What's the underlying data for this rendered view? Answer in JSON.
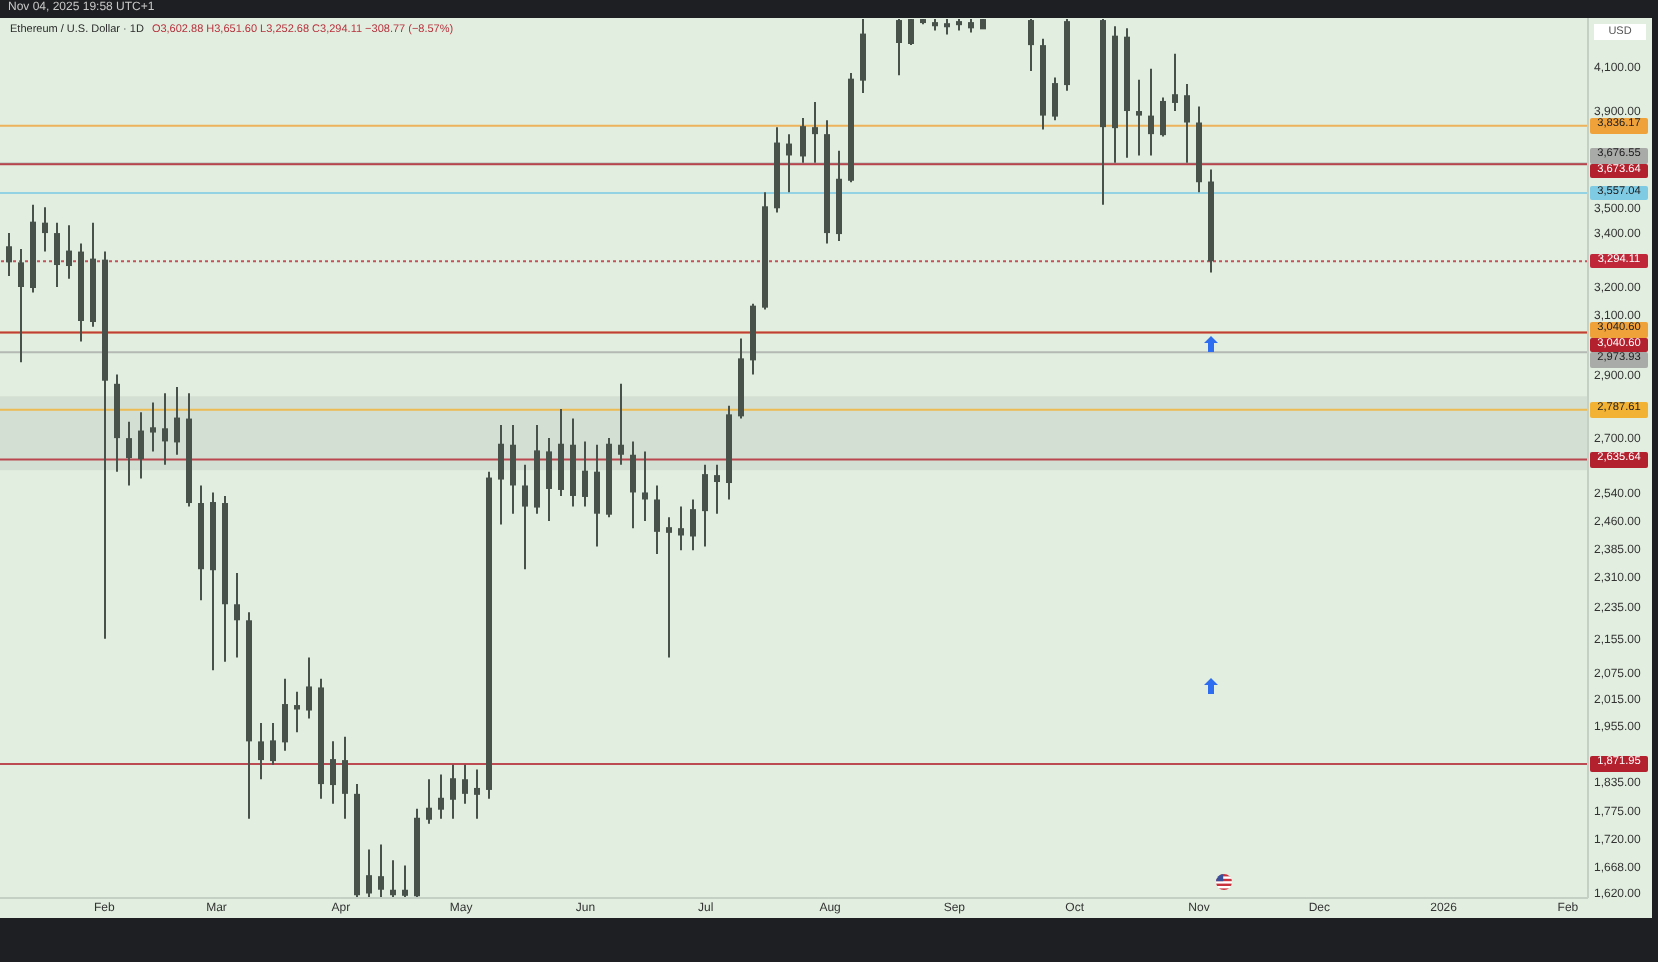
{
  "chart_data": {
    "type": "candlestick",
    "title": "Ethereum / U.S. Dollar · 1D",
    "subtitle": "O3,602.88 H3,651.60 L3,252.68 C3,294.11 −308.77 (−8.57%)",
    "ylabel": "USD",
    "annotations": [
      "Nov 04, 2025 19:58 UTC+1"
    ],
    "color": "#48524b",
    "log": true,
    "x": [
      "2025-01-08",
      "2025-01-11",
      "2025-01-14",
      "2025-01-17",
      "2025-01-20",
      "2025-01-23",
      "2025-01-26",
      "2025-01-29",
      "2025-02-01",
      "2025-02-04",
      "2025-02-07",
      "2025-02-10",
      "2025-02-13",
      "2025-02-16",
      "2025-02-19",
      "2025-02-22",
      "2025-02-25",
      "2025-02-28",
      "2025-03-03",
      "2025-03-06",
      "2025-03-09",
      "2025-03-12",
      "2025-03-15",
      "2025-03-18",
      "2025-03-21",
      "2025-03-24",
      "2025-03-27",
      "2025-03-30",
      "2025-04-02",
      "2025-04-05",
      "2025-04-08",
      "2025-04-11",
      "2025-04-14",
      "2025-04-17",
      "2025-04-20",
      "2025-04-23",
      "2025-04-26",
      "2025-04-29",
      "2025-05-02",
      "2025-05-05",
      "2025-05-08",
      "2025-05-11",
      "2025-05-14",
      "2025-05-17",
      "2025-05-20",
      "2025-05-23",
      "2025-05-26",
      "2025-05-29",
      "2025-06-01",
      "2025-06-04",
      "2025-06-07",
      "2025-06-10",
      "2025-06-13",
      "2025-06-16",
      "2025-06-19",
      "2025-06-22",
      "2025-06-25",
      "2025-06-28",
      "2025-07-01",
      "2025-07-04",
      "2025-07-07",
      "2025-07-10",
      "2025-07-13",
      "2025-07-16",
      "2025-07-19",
      "2025-07-22",
      "2025-07-25",
      "2025-07-28",
      "2025-07-31",
      "2025-08-03",
      "2025-08-06",
      "2025-08-09",
      "2025-08-18",
      "2025-08-21",
      "2025-08-24",
      "2025-08-27",
      "2025-08-30",
      "2025-09-02",
      "2025-09-05",
      "2025-09-08",
      "2025-09-20",
      "2025-09-23",
      "2025-09-26",
      "2025-09-29",
      "2025-10-08",
      "2025-10-11",
      "2025-10-14",
      "2025-10-17",
      "2025-10-20",
      "2025-10-23",
      "2025-10-26",
      "2025-10-29",
      "2025-11-01",
      "2025-11-04"
    ],
    "ohlc": [
      [
        3350,
        3400,
        3240,
        3290
      ],
      [
        3290,
        3340,
        2940,
        3200
      ],
      [
        3200,
        3510,
        3180,
        3440
      ],
      [
        3440,
        3500,
        3330,
        3400
      ],
      [
        3400,
        3440,
        3200,
        3280
      ],
      [
        3280,
        3430,
        3230,
        3330
      ],
      [
        3330,
        3360,
        3010,
        3080
      ],
      [
        3080,
        3440,
        3060,
        3300
      ],
      [
        3300,
        3330,
        2155,
        2880
      ],
      [
        2870,
        2900,
        2600,
        2700
      ],
      [
        2700,
        2750,
        2560,
        2640
      ],
      [
        2640,
        2780,
        2580,
        2720
      ],
      [
        2720,
        2810,
        2660,
        2730
      ],
      [
        2730,
        2840,
        2620,
        2690
      ],
      [
        2690,
        2860,
        2650,
        2760
      ],
      [
        2760,
        2840,
        2500,
        2510
      ],
      [
        2510,
        2560,
        2250,
        2330
      ],
      [
        2330,
        2540,
        2080,
        2510
      ],
      [
        2510,
        2530,
        2100,
        2240
      ],
      [
        2240,
        2320,
        2110,
        2200
      ],
      [
        2200,
        2220,
        1760,
        1920
      ],
      [
        1920,
        1960,
        1840,
        1880
      ],
      [
        1880,
        1960,
        1870,
        1920
      ],
      [
        1920,
        2060,
        1900,
        2000
      ],
      [
        2000,
        2030,
        1940,
        1990
      ],
      [
        1990,
        2110,
        1970,
        2040
      ],
      [
        2040,
        2060,
        1800,
        1830
      ],
      [
        1830,
        1920,
        1790,
        1880
      ],
      [
        1880,
        1930,
        1760,
        1810
      ],
      [
        1810,
        1830,
        1612,
        1615
      ],
      [
        1620,
        1700,
        1612,
        1650
      ],
      [
        1650,
        1710,
        1612,
        1625
      ],
      [
        1625,
        1680,
        1612,
        1615
      ],
      [
        1625,
        1670,
        1612,
        1614
      ],
      [
        1615,
        1780,
        1612,
        1760
      ],
      [
        1760,
        1840,
        1750,
        1780
      ],
      [
        1780,
        1850,
        1760,
        1800
      ],
      [
        1800,
        1870,
        1760,
        1840
      ],
      [
        1840,
        1870,
        1790,
        1810
      ],
      [
        1810,
        1860,
        1760,
        1820
      ],
      [
        1820,
        2600,
        1800,
        2580
      ],
      [
        2580,
        2740,
        2450,
        2680
      ],
      [
        2680,
        2740,
        2480,
        2560
      ],
      [
        2560,
        2620,
        2330,
        2500
      ],
      [
        2500,
        2740,
        2480,
        2660
      ],
      [
        2660,
        2700,
        2460,
        2550
      ],
      [
        2550,
        2790,
        2530,
        2680
      ],
      [
        2680,
        2760,
        2500,
        2530
      ],
      [
        2530,
        2690,
        2500,
        2600
      ],
      [
        2600,
        2680,
        2390,
        2480
      ],
      [
        2480,
        2700,
        2470,
        2680
      ],
      [
        2680,
        2870,
        2620,
        2650
      ],
      [
        2650,
        2690,
        2440,
        2540
      ],
      [
        2540,
        2660,
        2460,
        2520
      ],
      [
        2520,
        2560,
        2370,
        2430
      ],
      [
        2430,
        2470,
        2110,
        2440
      ],
      [
        2440,
        2500,
        2380,
        2420
      ],
      [
        2420,
        2520,
        2380,
        2490
      ],
      [
        2490,
        2620,
        2390,
        2590
      ],
      [
        2590,
        2620,
        2480,
        2570
      ],
      [
        2570,
        2800,
        2520,
        2770
      ],
      [
        2770,
        3020,
        2760,
        2950
      ],
      [
        2950,
        3140,
        2900,
        3130
      ],
      [
        3130,
        3560,
        3120,
        3500
      ],
      [
        3500,
        3830,
        3480,
        3760
      ],
      [
        3760,
        3800,
        3560,
        3710
      ],
      [
        3710,
        3870,
        3680,
        3830
      ],
      [
        3830,
        3940,
        3680,
        3800
      ],
      [
        3800,
        3860,
        3360,
        3400
      ],
      [
        3400,
        3730,
        3370,
        3610
      ],
      [
        3610,
        4070,
        3600,
        4040
      ],
      [
        4040,
        4325,
        3980,
        4250
      ],
      [
        4320,
        4325,
        4060,
        4210
      ],
      [
        4210,
        4325,
        4200,
        4320
      ],
      [
        4315,
        4325,
        4300,
        4320
      ],
      [
        4310,
        4325,
        4270,
        4290
      ],
      [
        4290,
        4325,
        4250,
        4300
      ],
      [
        4300,
        4325,
        4270,
        4310
      ],
      [
        4310,
        4325,
        4260,
        4280
      ],
      [
        4280,
        4325,
        4280,
        4320
      ],
      [
        4320,
        4325,
        4080,
        4200
      ],
      [
        4200,
        4230,
        3820,
        3880
      ],
      [
        3880,
        4050,
        3860,
        4020
      ],
      [
        4020,
        4325,
        3990,
        4310
      ],
      [
        4320,
        4325,
        3510,
        3830
      ],
      [
        3830,
        4290,
        3680,
        4240
      ],
      [
        4240,
        4280,
        3700,
        3900
      ],
      [
        3900,
        4040,
        3710,
        3880
      ],
      [
        3880,
        4090,
        3710,
        3800
      ],
      [
        3800,
        3960,
        3790,
        3940
      ],
      [
        3940,
        4160,
        3900,
        3970
      ],
      [
        3970,
        4020,
        3680,
        3850
      ],
      [
        3850,
        3920,
        3560,
        3600
      ],
      [
        3602.88,
        3651.6,
        3252.68,
        3294.11
      ]
    ],
    "xlim": [
      "2025-01-06",
      "2026-02-06"
    ],
    "xticks": [
      {
        "value": "2025-02-01",
        "label": "Feb"
      },
      {
        "value": "2025-03-01",
        "label": "Mar"
      },
      {
        "value": "2025-04-01",
        "label": "Apr"
      },
      {
        "value": "2025-05-01",
        "label": "May"
      },
      {
        "value": "2025-06-01",
        "label": "Jun"
      },
      {
        "value": "2025-07-01",
        "label": "Jul"
      },
      {
        "value": "2025-08-01",
        "label": "Aug"
      },
      {
        "value": "2025-09-01",
        "label": "Sep"
      },
      {
        "value": "2025-10-01",
        "label": "Oct"
      },
      {
        "value": "2025-11-01",
        "label": "Nov"
      },
      {
        "value": "2025-12-01",
        "label": "Dec"
      },
      {
        "value": "2026-01-01",
        "label": "2026"
      },
      {
        "value": "2026-02-01",
        "label": "Feb"
      }
    ],
    "ylim": [
      1610,
      4330
    ],
    "yticks": [
      {
        "value": 4100,
        "label": "4,100.00"
      },
      {
        "value": 3900,
        "label": "3,900.00"
      },
      {
        "value": 3500,
        "label": "3,500.00"
      },
      {
        "value": 3400,
        "label": "3,400.00"
      },
      {
        "value": 3200,
        "label": "3,200.00"
      },
      {
        "value": 3100,
        "label": "3,100.00"
      },
      {
        "value": 2900,
        "label": "2,900.00"
      },
      {
        "value": 2700,
        "label": "2,700.00"
      },
      {
        "value": 2540,
        "label": "2,540.00"
      },
      {
        "value": 2460,
        "label": "2,460.00"
      },
      {
        "value": 2385,
        "label": "2,385.00"
      },
      {
        "value": 2310,
        "label": "2,310.00"
      },
      {
        "value": 2235,
        "label": "2,235.00"
      },
      {
        "value": 2155,
        "label": "2,155.00"
      },
      {
        "value": 2075,
        "label": "2,075.00"
      },
      {
        "value": 2015,
        "label": "2,015.00"
      },
      {
        "value": 1955,
        "label": "1,955.00"
      },
      {
        "value": 1835,
        "label": "1,835.00"
      },
      {
        "value": 1775,
        "label": "1,775.00"
      },
      {
        "value": 1720,
        "label": "1,720.00"
      },
      {
        "value": 1668,
        "label": "1,668.00"
      },
      {
        "value": 1620,
        "label": "1,620.00"
      }
    ],
    "ref_lines": [
      {
        "axis": "y",
        "value": 3836.17,
        "label": "3,836.17",
        "color": "#f0a23a"
      },
      {
        "axis": "y",
        "value": 3676.55,
        "label": "3,676.55",
        "color": "#a9aba9"
      },
      {
        "axis": "y",
        "value": 3673.64,
        "label": "3,673.64",
        "color": "#b3202e"
      },
      {
        "axis": "y",
        "value": 3557.04,
        "label": "3,557.04",
        "color": "#80cbe4"
      },
      {
        "axis": "y",
        "value": 3294.11,
        "label": "3,294.11",
        "color": "#c0283a",
        "line_style": "dotted"
      },
      {
        "axis": "y",
        "value": 3040.6,
        "label": "3,040.60",
        "color": "#f0a23a"
      },
      {
        "axis": "y",
        "value": 3040.6,
        "label": "3,040.60",
        "color": "#b3202e"
      },
      {
        "axis": "y",
        "value": 2973.93,
        "label": "2,973.93",
        "color": "#a9aba9"
      },
      {
        "axis": "y",
        "value": 2787.61,
        "label": "2,787.61",
        "color": "#f2b233"
      },
      {
        "axis": "y",
        "value": 2635.64,
        "label": "2,635.64",
        "color": "#b3202e"
      },
      {
        "axis": "y",
        "value": 1871.95,
        "label": "1,871.95",
        "color": "#b3202e"
      }
    ],
    "bands": [
      {
        "axis": "y",
        "from": 2604,
        "to": 2830,
        "color": "#9e9e9e"
      }
    ]
  }
}
